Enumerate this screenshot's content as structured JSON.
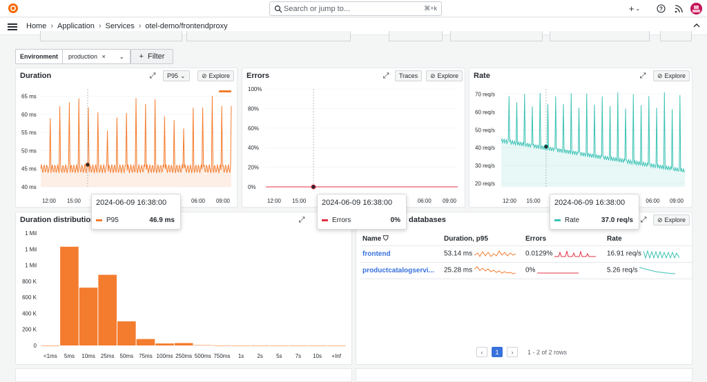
{
  "topbar": {
    "search_placeholder": "Search or jump to...",
    "search_shortcut": "⌘+k",
    "add_label": "+",
    "help_label": "?",
    "news_label": "⌁"
  },
  "breadcrumbs": [
    "Home",
    "Application",
    "Services",
    "otel-demo/frontendproxy"
  ],
  "filters": {
    "env_label": "Environment",
    "env_value": "production",
    "add_filter_label": "Filter"
  },
  "colors": {
    "duration": "#f47c2e",
    "errors": "#e02f44",
    "rate": "#3ac2b4",
    "accent": "#3871dc"
  },
  "panels": {
    "duration": {
      "title": "Duration",
      "select": "P95",
      "explore": "Explore"
    },
    "errors": {
      "title": "Errors",
      "traces": "Traces",
      "explore": "Explore"
    },
    "rate": {
      "title": "Rate",
      "explore": "Explore"
    },
    "distribution": {
      "title": "Duration distribution"
    },
    "databases": {
      "title": "databases",
      "explore": "Explore"
    }
  },
  "chart_data": [
    {
      "type": "line",
      "name": "duration",
      "y_ticks": [
        "40 ms",
        "45 ms",
        "50 ms",
        "55 ms",
        "60 ms",
        "65 ms"
      ],
      "ylim": [
        40,
        67
      ],
      "x_ticks": [
        "12:00",
        "15:00",
        "18:00",
        "21:00",
        "00:00",
        "03:00",
        "06:00",
        "09:00"
      ],
      "series": [
        {
          "name": "P95",
          "baseline_ms": 45,
          "spike_peak_ms": 64
        }
      ]
    },
    {
      "type": "line",
      "name": "errors",
      "y_ticks": [
        "0%",
        "20%",
        "40%",
        "60%",
        "80%",
        "100%"
      ],
      "ylim": [
        0,
        100
      ],
      "x_ticks": [
        "12:00",
        "15:00",
        "18:00",
        "21:00",
        "00:00",
        "03:00",
        "06:00",
        "09:00"
      ],
      "series": [
        {
          "name": "Errors",
          "value_pct": 0
        }
      ]
    },
    {
      "type": "area",
      "name": "rate",
      "y_ticks": [
        "20 req/s",
        "30 req/s",
        "40 req/s",
        "50 req/s",
        "60 req/s",
        "70 req/s"
      ],
      "ylim": [
        18,
        73
      ],
      "x_ticks": [
        "12:00",
        "15:00",
        "18:00",
        "21:00",
        "00:00",
        "03:00",
        "06:00",
        "09:00"
      ],
      "series": [
        {
          "name": "Rate",
          "start_req_s": 44,
          "end_req_s": 27,
          "spike_peak_req_s": 70
        }
      ]
    },
    {
      "type": "bar",
      "name": "distribution",
      "categories": [
        "<1ms",
        "5ms",
        "10ms",
        "25ms",
        "50ms",
        "75ms",
        "100ms",
        "250ms",
        "500ms",
        "750ms",
        "1s",
        "2s",
        "5s",
        "7s",
        "10s",
        "+Inf"
      ],
      "values": [
        0,
        1230000,
        720000,
        880000,
        300000,
        80000,
        25000,
        30000,
        4000,
        1000,
        500,
        300,
        200,
        100,
        100,
        100
      ],
      "y_ticks": [
        "0",
        "200 K",
        "400 K",
        "600 K",
        "800 K",
        "1 Mil",
        "1 Mil",
        "1 Mil"
      ],
      "ylim": [
        0,
        1400000
      ]
    }
  ],
  "tooltips": {
    "duration": {
      "time": "2024-06-09 16:38:00",
      "label": "P95",
      "value": "46.9 ms"
    },
    "errors": {
      "time": "2024-06-09 16:38:00",
      "label": "Errors",
      "value": "0%"
    },
    "rate": {
      "time": "2024-06-09 16:38:00",
      "label": "Rate",
      "value": "37.0 req/s"
    }
  },
  "table": {
    "headers": [
      "Name",
      "Duration, p95",
      "Errors",
      "Rate"
    ],
    "rows": [
      {
        "name": "frontend",
        "duration": "53.14 ms",
        "errors": "0.0129%",
        "rate": "16.91 req/s"
      },
      {
        "name": "productcatalogservi...",
        "duration": "25.28 ms",
        "errors": "0%",
        "rate": "5.26 req/s"
      }
    ],
    "page": "1",
    "summary": "1 - 2 of 2 rows"
  }
}
